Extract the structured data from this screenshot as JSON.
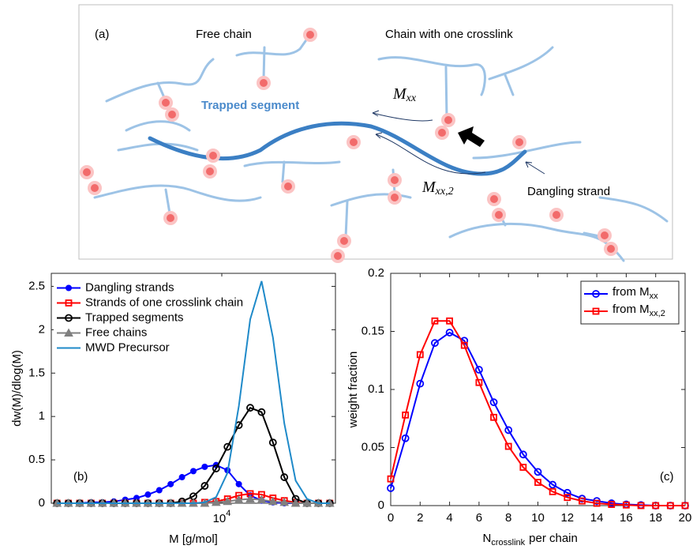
{
  "diagram": {
    "panel_label": "(a)",
    "free_chain": "Free chain",
    "chain_one_crosslink": "Chain with one crosslink",
    "trapped_segment": "Trapped segment",
    "m_xx": {
      "main": "M",
      "sub": "xx"
    },
    "m_xx2": {
      "main": "M",
      "sub": "xx,2"
    },
    "dangling_strand": "Dangling strand"
  },
  "chart_data": [
    {
      "type": "line",
      "panel_label": "(b)",
      "xlabel": "M [g/mol]",
      "ylabel": "dw(M)/dlog(M)",
      "xscale": "log",
      "x": [
        355,
        447,
        562,
        708,
        891,
        1122,
        1413,
        1778,
        2239,
        2818,
        3548,
        4467,
        5623,
        7079,
        8913,
        11220,
        14125,
        17783,
        22387,
        28184,
        35481,
        44668,
        56234,
        70795,
        89125
      ],
      "xlim": [
        316.2,
        100000
      ],
      "xticks": [
        {
          "value": 10000,
          "label": "10",
          "exponent": "4"
        }
      ],
      "ylim": [
        0,
        2.65
      ],
      "yticks": [
        0,
        0.5,
        1,
        1.5,
        2,
        2.5
      ],
      "legend": "top-left",
      "series": [
        {
          "name": "Dangling strands",
          "color": "#0000ff",
          "marker": "circle-filled",
          "values": [
            0,
            0,
            0,
            0.01,
            0.01,
            0.02,
            0.04,
            0.06,
            0.1,
            0.15,
            0.22,
            0.3,
            0.37,
            0.42,
            0.44,
            0.38,
            0.22,
            0.09,
            0.03,
            0.01,
            0,
            0,
            0,
            0,
            0
          ]
        },
        {
          "name": "Strands of one crosslink chain",
          "color": "#ff0000",
          "marker": "square",
          "values": [
            0,
            0,
            0,
            0,
            0,
            0,
            0,
            0,
            0,
            0,
            0,
            0,
            0,
            0.01,
            0.02,
            0.05,
            0.09,
            0.11,
            0.1,
            0.06,
            0.03,
            0.01,
            0,
            0,
            0
          ]
        },
        {
          "name": "Trapped segments",
          "color": "#000000",
          "marker": "circle-open",
          "values": [
            0,
            0,
            0,
            0,
            0,
            0,
            0,
            0,
            0,
            0,
            0,
            0.02,
            0.08,
            0.2,
            0.4,
            0.65,
            0.9,
            1.1,
            1.05,
            0.7,
            0.3,
            0.05,
            0,
            0,
            0
          ]
        },
        {
          "name": "Free chains",
          "color": "#808080",
          "marker": "triangle",
          "values": [
            0,
            0,
            0,
            0,
            0,
            0,
            0,
            0,
            0,
            0,
            0,
            0,
            0,
            0,
            0.01,
            0.02,
            0.04,
            0.05,
            0.04,
            0.02,
            0.01,
            0,
            0,
            0,
            0
          ]
        },
        {
          "name": "MWD Precursor",
          "color": "#1f8ac9",
          "values": [
            0,
            0,
            0,
            0,
            0,
            0,
            0,
            0,
            0,
            0,
            0,
            0,
            0,
            0.01,
            0.07,
            0.35,
            1.12,
            2.12,
            2.56,
            1.91,
            0.92,
            0.26,
            0.05,
            0,
            0
          ]
        }
      ]
    },
    {
      "type": "line",
      "panel_label": "(c)",
      "xlabel": {
        "main": "N",
        "sub": "crosslink",
        "rest": "per chain"
      },
      "ylabel": "weight  fraction",
      "x": [
        0,
        1,
        2,
        3,
        4,
        5,
        6,
        7,
        8,
        9,
        10,
        11,
        12,
        13,
        14,
        15,
        16,
        17,
        18,
        19,
        20
      ],
      "xlim": [
        0,
        20
      ],
      "xticks": [
        0,
        2,
        4,
        6,
        8,
        10,
        12,
        14,
        16,
        18,
        20
      ],
      "ylim": [
        0,
        0.2
      ],
      "yticks": [
        0,
        0.05,
        0.1,
        0.15,
        0.2
      ],
      "legend": "top-right",
      "series": [
        {
          "name": "from M",
          "name_sub": "xx",
          "color": "#0000ff",
          "marker": "circle-open",
          "values": [
            0.015,
            0.058,
            0.105,
            0.14,
            0.149,
            0.142,
            0.117,
            0.089,
            0.065,
            0.044,
            0.029,
            0.018,
            0.011,
            0.006,
            0.004,
            0.002,
            0.001,
            0.0005,
            0,
            0,
            0
          ]
        },
        {
          "name": "from M",
          "name_sub": "xx,2",
          "color": "#ff0000",
          "marker": "square",
          "values": [
            0.023,
            0.078,
            0.13,
            0.159,
            0.159,
            0.138,
            0.106,
            0.076,
            0.051,
            0.033,
            0.02,
            0.012,
            0.007,
            0.004,
            0.002,
            0.001,
            0.0005,
            0,
            0,
            0,
            0
          ]
        }
      ]
    }
  ]
}
